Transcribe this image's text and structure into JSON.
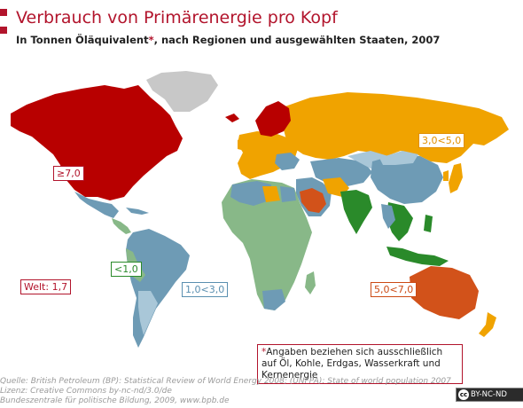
{
  "header": {
    "title": "Verbrauch von Primärenergie pro Kopf",
    "subtitle_pre": "In Tonnen Öläquivalent",
    "subtitle_star": "*",
    "subtitle_post": ", nach Regionen und ausgewählten Staaten, 2007"
  },
  "legend": {
    "high": "≥7,0",
    "upper_mid": "3,0<5,0",
    "mid": "1,0<3,0",
    "low": "<1,0",
    "upper": "5,0<7,0",
    "world": "Welt: 1,7"
  },
  "colors": {
    "brand": "#b2142c",
    "high": "#b80000",
    "upper_mid": "#f0a300",
    "mid": "#6e9bb5",
    "low": "#88b888",
    "upper": "#d2521a",
    "no_data": "#c8c8c8",
    "mid_light": "#a9c7d8"
  },
  "footnote": {
    "star": "*",
    "text": "Angaben beziehen sich ausschließlich auf Öl, Kohle, Erdgas, Wasserkraft und Kernenergie"
  },
  "source": {
    "line1": "Quelle:  British Petroleum (BP): Statistical Review of World Energy 2008; (UNFPA): State of world population 2007",
    "line2": "Lizenz: Creative Commons  by-nc-nd/3.0/de",
    "line3": "Bundeszentrale für politische Bildung, 2009, www.bpb.de"
  },
  "license_badge": {
    "cc": "cc",
    "text": "BY-NC-ND"
  }
}
